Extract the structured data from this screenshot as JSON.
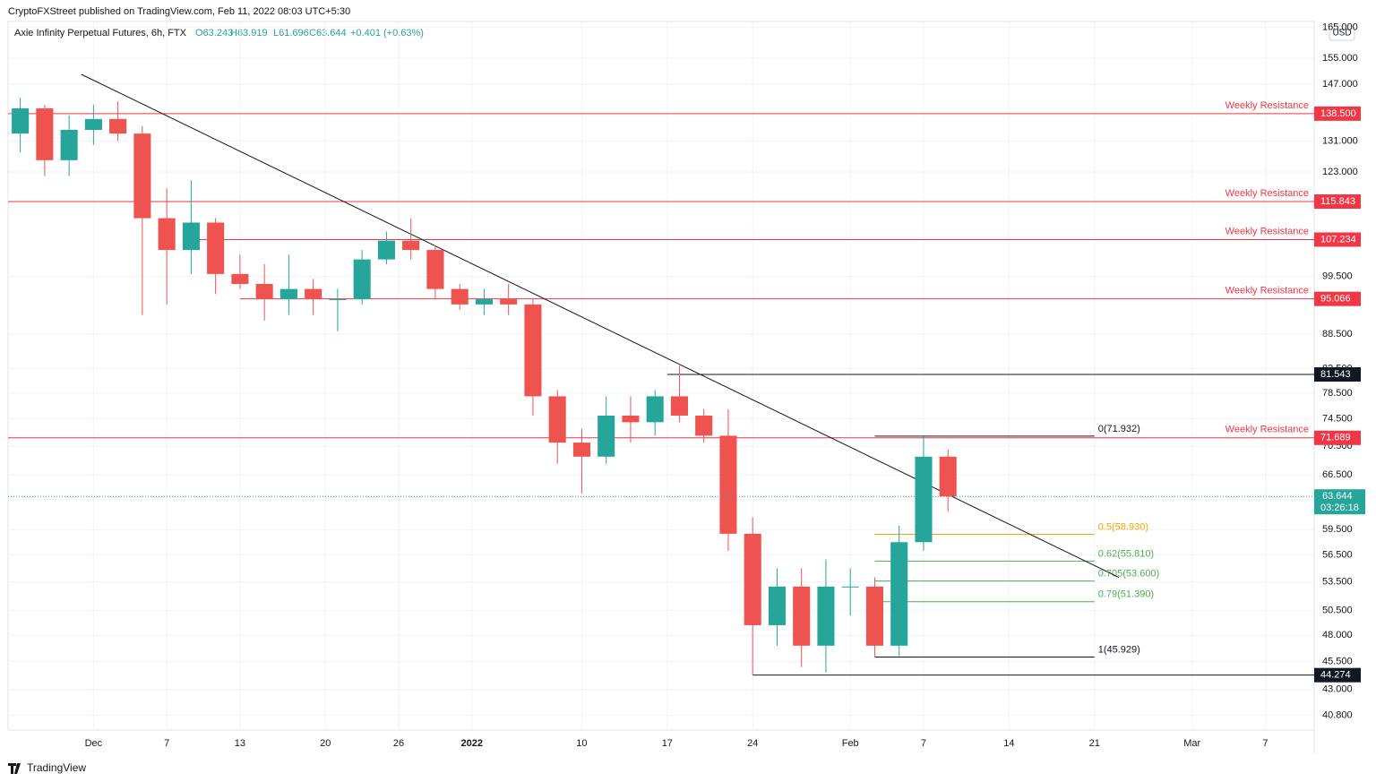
{
  "header": {
    "publisher": "CryptoFXStreet published on TradingView.com, Feb 11, 2022 08:03 UTC+5:30",
    "symbol": "Axie Infinity Perpetual Futures, 6h, FTX",
    "ohlc": [
      "O63.243",
      "H63.919",
      "L61.696",
      "C63.644",
      "+0.401 (+0.63%)"
    ],
    "currency": "USD",
    "footer": "TradingView"
  },
  "chart_data": {
    "type": "candlestick",
    "log_scale": true,
    "ylim": [
      39.6,
      167
    ],
    "xlim": [
      "2021-11-24",
      "2022-03-11"
    ],
    "yticks": [
      {
        "value": 165,
        "label": "165.000"
      },
      {
        "value": 155,
        "label": "155.000"
      },
      {
        "value": 147,
        "label": "147.000"
      },
      {
        "value": 131,
        "label": "131.000"
      },
      {
        "value": 123,
        "label": "123.000"
      },
      {
        "value": 99.5,
        "label": "99.500"
      },
      {
        "value": 88.5,
        "label": "88.500"
      },
      {
        "value": 82.5,
        "label": "82.500"
      },
      {
        "value": 78.5,
        "label": "78.500"
      },
      {
        "value": 74.5,
        "label": "74.500"
      },
      {
        "value": 70.5,
        "label": "70.500"
      },
      {
        "value": 66.5,
        "label": "66.500"
      },
      {
        "value": 59.5,
        "label": "59.500"
      },
      {
        "value": 56.5,
        "label": "56.500"
      },
      {
        "value": 53.5,
        "label": "53.500"
      },
      {
        "value": 50.5,
        "label": "50.500"
      },
      {
        "value": 48,
        "label": "48.000"
      },
      {
        "value": 45.5,
        "label": "45.500"
      },
      {
        "value": 43,
        "label": "43.000"
      },
      {
        "value": 40.8,
        "label": "40.800"
      }
    ],
    "xticks": [
      {
        "value": "2021-12-01",
        "label": "Dec"
      },
      {
        "value": "2021-12-07",
        "label": "7"
      },
      {
        "value": "2021-12-13",
        "label": "13"
      },
      {
        "value": "2021-12-20",
        "label": "20"
      },
      {
        "value": "2021-12-26",
        "label": "26"
      },
      {
        "value": "2022-01-01",
        "label": "2022"
      },
      {
        "value": "2022-01-10",
        "label": "10"
      },
      {
        "value": "2022-01-17",
        "label": "17"
      },
      {
        "value": "2022-01-24",
        "label": "24"
      },
      {
        "value": "2022-02-01",
        "label": "Feb"
      },
      {
        "value": "2022-02-07",
        "label": "7"
      },
      {
        "value": "2022-02-14",
        "label": "14"
      },
      {
        "value": "2022-02-21",
        "label": "21"
      },
      {
        "value": "2022-03-01",
        "label": "Mar"
      },
      {
        "value": "2022-03-07",
        "label": "7"
      }
    ],
    "up_color": "#26a69a",
    "down_color": "#ef5350",
    "x": [
      "2021-11-25",
      "2021-11-27",
      "2021-11-29",
      "2021-12-01",
      "2021-12-03",
      "2021-12-05",
      "2021-12-07",
      "2021-12-09",
      "2021-12-11",
      "2021-12-13",
      "2021-12-15",
      "2021-12-17",
      "2021-12-19",
      "2021-12-21",
      "2021-12-23",
      "2021-12-25",
      "2021-12-27",
      "2021-12-29",
      "2021-12-31",
      "2022-01-02",
      "2022-01-04",
      "2022-01-06",
      "2022-01-08",
      "2022-01-10",
      "2022-01-12",
      "2022-01-14",
      "2022-01-16",
      "2022-01-18",
      "2022-01-20",
      "2022-01-22",
      "2022-01-24",
      "2022-01-26",
      "2022-01-28",
      "2022-01-30",
      "2022-02-01",
      "2022-02-03",
      "2022-02-05",
      "2022-02-07",
      "2022-02-09"
    ],
    "open": [
      133,
      140,
      126,
      134,
      137,
      133,
      112,
      105,
      111,
      100,
      98,
      95,
      97,
      95,
      95,
      103,
      107,
      105,
      97,
      94,
      95,
      94,
      78,
      71,
      69,
      75,
      74,
      78,
      75,
      72,
      59,
      49,
      53,
      47,
      53,
      53,
      47,
      58,
      69
    ],
    "high": [
      143,
      141,
      138,
      141,
      142,
      135,
      119,
      121,
      112,
      104,
      102,
      104,
      99,
      97,
      105,
      109,
      112,
      106,
      98,
      97,
      98,
      95,
      79,
      73,
      78,
      78,
      79,
      83,
      76,
      76,
      61,
      55,
      55,
      56,
      55,
      54,
      60,
      71.9,
      70
    ],
    "low": [
      128,
      122,
      122,
      130,
      131,
      92,
      94,
      100,
      96,
      97,
      91,
      92,
      92,
      89,
      94,
      102,
      103,
      95,
      93,
      92,
      92,
      75,
      68,
      64,
      68,
      71,
      72,
      74,
      71,
      57,
      44.3,
      47,
      45,
      44.5,
      50,
      45.9,
      46,
      57,
      61.7
    ],
    "close": [
      140,
      126,
      134,
      137,
      133,
      112,
      105,
      111,
      100,
      98,
      95,
      97,
      95,
      95,
      103,
      107,
      105,
      97,
      94,
      95,
      94,
      78,
      71,
      69,
      75,
      74,
      78,
      75,
      72,
      59,
      49,
      53,
      47,
      53,
      53,
      47,
      58,
      69,
      63.644
    ],
    "levels": [
      {
        "value": 138.5,
        "label": "138.500",
        "text": "Weekly Resistance",
        "color": "#f23645"
      },
      {
        "value": 115.843,
        "label": "115.843",
        "text": "Weekly Resistance",
        "color": "#f23645"
      },
      {
        "value": 107.234,
        "label": "107.234",
        "text": "Weekly Resistance",
        "color": "#f23645",
        "from": "2021-12-09"
      },
      {
        "value": 95.066,
        "label": "95.066",
        "text": "Weekly Resistance",
        "color": "#f23645",
        "from": "2021-12-13"
      },
      {
        "value": 81.543,
        "label": "81.543",
        "color": "#131722",
        "from": "2022-01-17"
      },
      {
        "value": 71.689,
        "label": "71.689",
        "text": "Weekly Resistance",
        "color": "#f23645"
      },
      {
        "value": 44.274,
        "label": "44.274",
        "color": "#131722",
        "from": "2022-01-24"
      }
    ],
    "last_price": {
      "value": 63.644,
      "label": "63.644",
      "countdown": "03:26:18",
      "color": "#26a69a"
    },
    "fib": {
      "from": "2022-02-03",
      "to": "2022-02-21",
      "levels": [
        {
          "value": 71.932,
          "label": "0(71.932)",
          "color": "#131722"
        },
        {
          "value": 58.93,
          "label": "0.5(58.930)",
          "color": "#f7a600"
        },
        {
          "value": 55.81,
          "label": "0.62(55.810)",
          "color": "#4caf50"
        },
        {
          "value": 53.6,
          "label": "0.705(53.600)",
          "color": "#4caf50"
        },
        {
          "value": 51.39,
          "label": "0.79(51.390)",
          "color": "#4caf50"
        },
        {
          "value": 45.929,
          "label": "1(45.929)",
          "color": "#131722"
        }
      ]
    },
    "trendline": {
      "x": [
        "2021-11-30",
        "2022-02-23"
      ],
      "y": [
        150,
        54
      ],
      "color": "#131722"
    }
  }
}
